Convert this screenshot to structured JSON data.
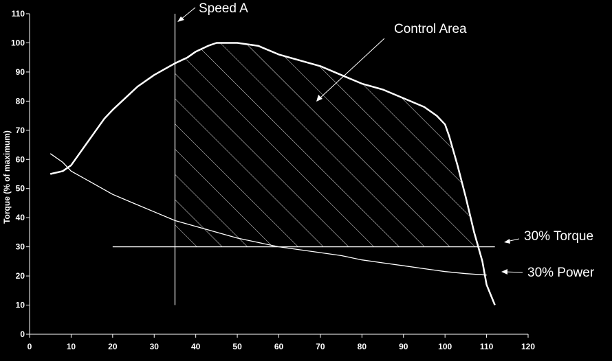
{
  "chart_data": {
    "type": "line",
    "title": "",
    "xlabel": "",
    "ylabel": "Torque (% of maximum)",
    "xlim": [
      0,
      120
    ],
    "ylim": [
      0,
      110
    ],
    "xticks": [
      0,
      10,
      20,
      30,
      40,
      50,
      60,
      70,
      80,
      90,
      100,
      110,
      120
    ],
    "yticks": [
      0,
      10,
      20,
      30,
      40,
      50,
      60,
      70,
      80,
      90,
      100,
      110
    ],
    "grid": false,
    "series": [
      {
        "name": "",
        "color": "#ffffff",
        "points": [
          [
            5,
            55
          ],
          [
            8,
            56
          ],
          [
            10,
            58
          ],
          [
            12,
            62
          ],
          [
            15,
            68
          ],
          [
            18,
            74
          ],
          [
            20,
            77
          ],
          [
            23,
            81
          ],
          [
            26,
            85
          ],
          [
            30,
            89
          ],
          [
            35,
            93
          ],
          [
            38,
            95
          ],
          [
            40,
            97
          ],
          [
            43,
            99
          ],
          [
            45,
            100
          ],
          [
            50,
            100
          ],
          [
            55,
            99
          ],
          [
            60,
            96
          ],
          [
            65,
            94
          ],
          [
            70,
            92
          ],
          [
            75,
            89
          ],
          [
            80,
            86
          ],
          [
            85,
            84
          ],
          [
            90,
            81
          ],
          [
            95,
            78
          ],
          [
            98,
            75
          ],
          [
            100,
            72
          ],
          [
            101,
            68
          ],
          [
            103,
            58
          ],
          [
            105,
            47
          ],
          [
            107,
            35
          ],
          [
            109,
            25
          ],
          [
            110,
            17
          ],
          [
            112,
            10
          ]
        ]
      },
      {
        "name": "",
        "color": "#ffffff",
        "points": [
          [
            5,
            62
          ],
          [
            8,
            59
          ],
          [
            10,
            56
          ],
          [
            15,
            52
          ],
          [
            20,
            48
          ],
          [
            25,
            45
          ],
          [
            30,
            42
          ],
          [
            35,
            39
          ],
          [
            40,
            37
          ],
          [
            45,
            35
          ],
          [
            50,
            33
          ],
          [
            55,
            31.5
          ],
          [
            60,
            30
          ],
          [
            65,
            29
          ],
          [
            70,
            28
          ],
          [
            75,
            27
          ],
          [
            80,
            25.5
          ],
          [
            85,
            24.5
          ],
          [
            90,
            23.5
          ],
          [
            95,
            22.5
          ],
          [
            100,
            21.5
          ],
          [
            105,
            20.8
          ],
          [
            110,
            20.3
          ]
        ]
      }
    ],
    "speed_a_x": 35,
    "torque_30_line": {
      "y": 30,
      "x_start": 20,
      "x_end": 112
    },
    "speed_a_range": [
      10,
      110
    ],
    "control_area_range": [
      35,
      108
    ],
    "annotations": {
      "speed_a": "Speed A",
      "control_area": "Control Area",
      "torque_30": "30% Torque",
      "power_30": "30% Power"
    }
  }
}
